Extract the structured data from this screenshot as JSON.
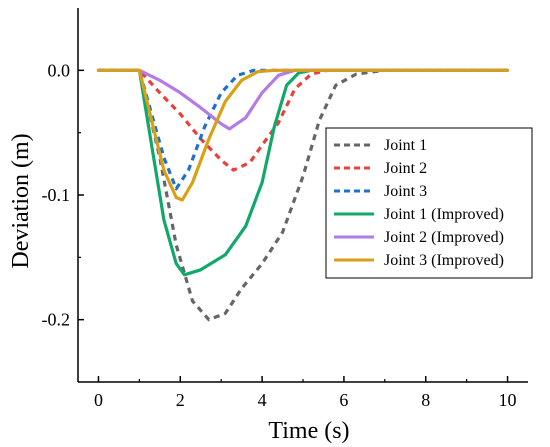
{
  "chart_data": {
    "type": "line",
    "xlabel": "Time  (s)",
    "ylabel": "Deviation  (m)",
    "xlim": [
      -0.5,
      10.5
    ],
    "ylim": [
      -0.25,
      0.05
    ],
    "xticks": [
      0,
      2,
      4,
      6,
      8,
      10
    ],
    "xtick_labels": [
      "0",
      "2",
      "4",
      "6",
      "8",
      "10"
    ],
    "yticks": [
      0.0,
      -0.1,
      -0.2
    ],
    "ytick_labels": [
      "0.0",
      "-0.1",
      "-0.2"
    ],
    "grid": false,
    "legend_position": "right",
    "series": [
      {
        "name": "Joint 1",
        "color": "#666666",
        "dash": "dashed",
        "points": [
          [
            0,
            0
          ],
          [
            1,
            0
          ],
          [
            1.5,
            -0.07
          ],
          [
            1.9,
            -0.14
          ],
          [
            2.3,
            -0.185
          ],
          [
            2.7,
            -0.2
          ],
          [
            3.1,
            -0.195
          ],
          [
            3.5,
            -0.175
          ],
          [
            4.0,
            -0.155
          ],
          [
            4.5,
            -0.13
          ],
          [
            5.0,
            -0.085
          ],
          [
            5.4,
            -0.04
          ],
          [
            5.8,
            -0.012
          ],
          [
            6.3,
            -0.003
          ],
          [
            7.0,
            0
          ],
          [
            10,
            0
          ]
        ]
      },
      {
        "name": "Joint 2",
        "color": "#e8413c",
        "dash": "dashed",
        "points": [
          [
            0,
            0
          ],
          [
            1,
            0
          ],
          [
            1.5,
            -0.018
          ],
          [
            2.0,
            -0.035
          ],
          [
            2.5,
            -0.055
          ],
          [
            3.0,
            -0.072
          ],
          [
            3.3,
            -0.08
          ],
          [
            3.7,
            -0.074
          ],
          [
            4.0,
            -0.06
          ],
          [
            4.4,
            -0.042
          ],
          [
            4.8,
            -0.015
          ],
          [
            5.2,
            -0.003
          ],
          [
            5.6,
            0
          ],
          [
            10,
            0
          ]
        ]
      },
      {
        "name": "Joint 3",
        "color": "#1f6fd1",
        "dash": "dashed",
        "points": [
          [
            0,
            0
          ],
          [
            1,
            0
          ],
          [
            1.3,
            -0.035
          ],
          [
            1.6,
            -0.07
          ],
          [
            1.9,
            -0.095
          ],
          [
            2.2,
            -0.08
          ],
          [
            2.6,
            -0.045
          ],
          [
            3.0,
            -0.018
          ],
          [
            3.4,
            -0.004
          ],
          [
            3.8,
            0
          ],
          [
            10,
            0
          ]
        ]
      },
      {
        "name": "Joint 1 (Improved)",
        "color": "#12a86a",
        "dash": "solid",
        "points": [
          [
            0,
            0
          ],
          [
            1,
            0
          ],
          [
            1.3,
            -0.06
          ],
          [
            1.6,
            -0.12
          ],
          [
            1.9,
            -0.155
          ],
          [
            2.1,
            -0.164
          ],
          [
            2.5,
            -0.16
          ],
          [
            3.1,
            -0.148
          ],
          [
            3.6,
            -0.125
          ],
          [
            4.0,
            -0.09
          ],
          [
            4.3,
            -0.045
          ],
          [
            4.6,
            -0.012
          ],
          [
            4.9,
            -0.002
          ],
          [
            5.2,
            0
          ],
          [
            10,
            0
          ]
        ]
      },
      {
        "name": "Joint 2 (Improved)",
        "color": "#b47ae6",
        "dash": "solid",
        "points": [
          [
            0,
            0
          ],
          [
            1,
            0
          ],
          [
            1.5,
            -0.008
          ],
          [
            2.0,
            -0.018
          ],
          [
            2.5,
            -0.03
          ],
          [
            3.0,
            -0.043
          ],
          [
            3.2,
            -0.047
          ],
          [
            3.6,
            -0.038
          ],
          [
            4.0,
            -0.018
          ],
          [
            4.4,
            -0.004
          ],
          [
            4.8,
            0
          ],
          [
            10,
            0
          ]
        ]
      },
      {
        "name": "Joint 3 (Improved)",
        "color": "#d9a017",
        "dash": "solid",
        "points": [
          [
            0,
            0
          ],
          [
            1,
            0
          ],
          [
            1.3,
            -0.04
          ],
          [
            1.6,
            -0.08
          ],
          [
            1.9,
            -0.102
          ],
          [
            2.05,
            -0.104
          ],
          [
            2.3,
            -0.09
          ],
          [
            2.7,
            -0.055
          ],
          [
            3.1,
            -0.025
          ],
          [
            3.5,
            -0.008
          ],
          [
            3.9,
            -0.001
          ],
          [
            4.3,
            0
          ],
          [
            10,
            0
          ]
        ]
      }
    ]
  }
}
